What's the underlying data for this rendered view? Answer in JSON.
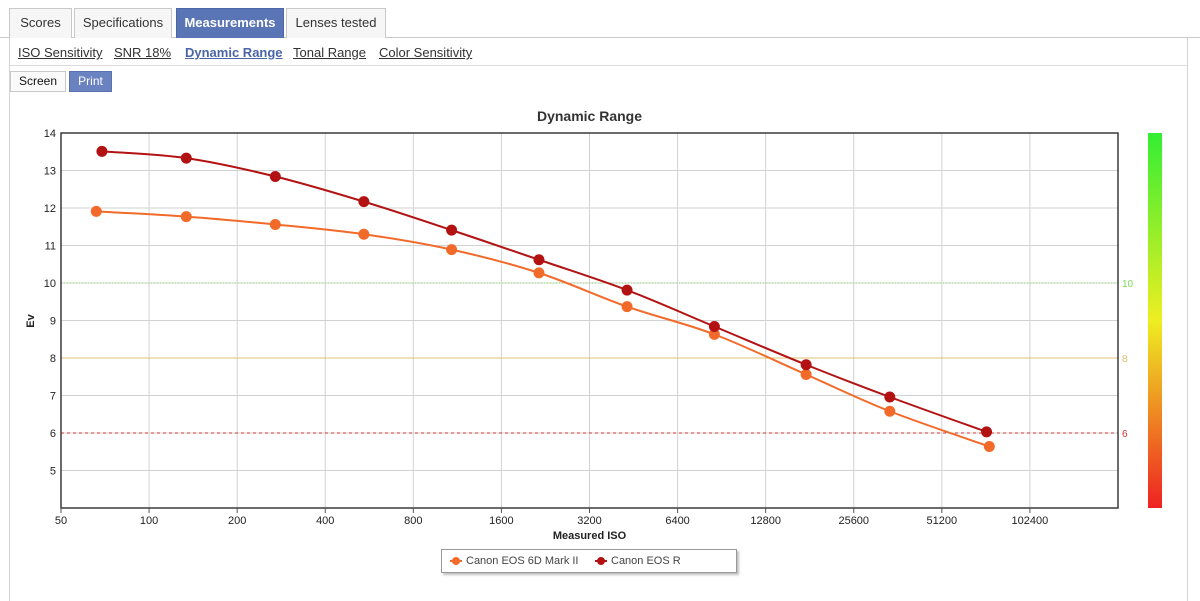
{
  "tabs": [
    {
      "label": "Scores",
      "active": false
    },
    {
      "label": "Specifications",
      "active": false
    },
    {
      "label": "Measurements",
      "active": true
    },
    {
      "label": "Lenses tested",
      "active": false
    }
  ],
  "subnav": [
    {
      "label": "ISO Sensitivity",
      "active": false
    },
    {
      "label": "SNR 18%",
      "active": false
    },
    {
      "label": "Dynamic Range",
      "active": true
    },
    {
      "label": "Tonal Range",
      "active": false
    },
    {
      "label": "Color Sensitivity",
      "active": false
    }
  ],
  "view_buttons": [
    {
      "label": "Screen",
      "active": false
    },
    {
      "label": "Print",
      "active": true
    }
  ],
  "chart_data": {
    "type": "line",
    "title": "Dynamic Range",
    "xlabel": "Measured ISO",
    "ylabel": "Ev",
    "x_scale": "log2",
    "x_ticks": [
      50,
      100,
      200,
      400,
      800,
      1600,
      3200,
      6400,
      12800,
      25600,
      51200,
      102400
    ],
    "x_range": [
      50,
      204800
    ],
    "ylim": [
      4,
      14
    ],
    "y_ticks": [
      5,
      6,
      7,
      8,
      9,
      10,
      11,
      12,
      13,
      14
    ],
    "grid": true,
    "legend_position": "bottom-center",
    "reference_lines": [
      {
        "value": 10,
        "label": "10",
        "color": "#7ed957",
        "style": "dotted"
      },
      {
        "value": 8,
        "label": "8",
        "color": "#e0c070",
        "style": "solid"
      },
      {
        "value": 6,
        "label": "6",
        "color": "#cc3333",
        "style": "dashed"
      }
    ],
    "color_scale": {
      "top_color": "#33ee33",
      "mid_color": "#eeee22",
      "bottom_color": "#ee2222"
    },
    "series": [
      {
        "name": "Canon EOS 6D Mark II",
        "color": "#f26a2a",
        "points": [
          [
            66,
            11.91
          ],
          [
            134,
            11.77
          ],
          [
            270,
            11.56
          ],
          [
            542,
            11.3
          ],
          [
            1081,
            10.89
          ],
          [
            2150,
            10.27
          ],
          [
            4300,
            9.37
          ],
          [
            8550,
            8.63
          ],
          [
            17600,
            7.56
          ],
          [
            34000,
            6.58
          ],
          [
            74400,
            5.64
          ]
        ]
      },
      {
        "name": "Canon EOS R",
        "color": "#b31212",
        "points": [
          [
            69,
            13.51
          ],
          [
            134,
            13.33
          ],
          [
            270,
            12.84
          ],
          [
            542,
            12.17
          ],
          [
            1081,
            11.41
          ],
          [
            2150,
            10.62
          ],
          [
            4300,
            9.81
          ],
          [
            8550,
            8.84
          ],
          [
            17600,
            7.82
          ],
          [
            34000,
            6.96
          ],
          [
            72800,
            6.03
          ]
        ]
      }
    ]
  }
}
